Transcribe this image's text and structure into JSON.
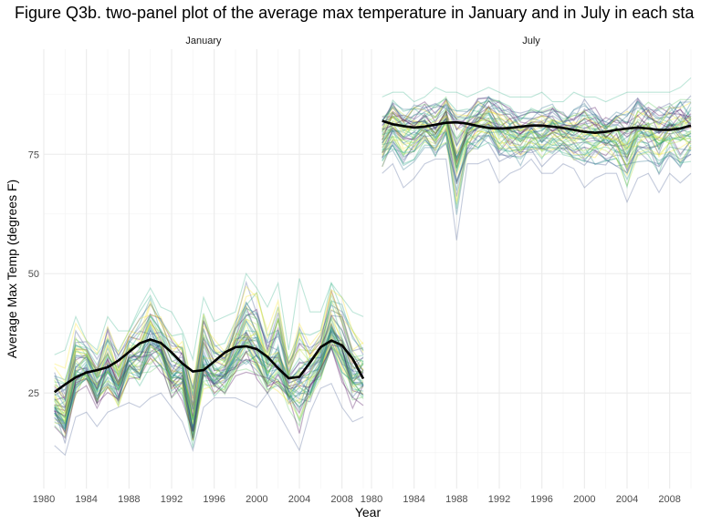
{
  "chart_data": {
    "type": "line",
    "title": "Figure Q3b. two-panel plot of the average max temperature in January and in July in each sta",
    "xlabel": "Year",
    "ylabel": "Average Max Temp (degrees F)",
    "xlim": [
      1980,
      2010
    ],
    "ylim": [
      5,
      97
    ],
    "x_ticks": [
      1980,
      1984,
      1988,
      1992,
      1996,
      2000,
      2004,
      2008
    ],
    "y_ticks": [
      25,
      50,
      75
    ],
    "grid": true,
    "legend": "none",
    "panels": [
      {
        "name": "January",
        "years": [
          1981,
          1982,
          1983,
          1984,
          1985,
          1986,
          1987,
          1988,
          1989,
          1990,
          1991,
          1992,
          1993,
          1994,
          1995,
          1996,
          1997,
          1998,
          1999,
          2000,
          2001,
          2002,
          2003,
          2004,
          2005,
          2006,
          2007,
          2008,
          2009,
          2010
        ],
        "mean_trend": [
          25.2,
          26.8,
          28.3,
          29.3,
          29.8,
          30.4,
          31.8,
          33.6,
          35.4,
          36.2,
          35.5,
          33.5,
          31.2,
          29.5,
          29.8,
          31.6,
          33.5,
          34.6,
          34.8,
          34.2,
          32.6,
          30.2,
          28.1,
          28.4,
          31.4,
          34.6,
          36.0,
          35.0,
          32.2,
          28.0
        ],
        "state_range_low": [
          14,
          12,
          20,
          21,
          18,
          21,
          22,
          23,
          22,
          24,
          25,
          22,
          19,
          13,
          22,
          24,
          24,
          24,
          23,
          22,
          25,
          21,
          17,
          13,
          21,
          26,
          27,
          22,
          19,
          20
        ],
        "state_range_high": [
          33,
          34,
          41,
          36,
          34,
          41,
          38,
          38,
          43,
          47,
          43,
          42,
          38,
          32,
          45,
          40,
          41,
          42,
          50,
          47,
          43,
          48,
          34,
          49,
          42,
          42,
          48,
          45,
          42,
          41
        ]
      },
      {
        "name": "July",
        "years": [
          1981,
          1982,
          1983,
          1984,
          1985,
          1986,
          1987,
          1988,
          1989,
          1990,
          1991,
          1992,
          1993,
          1994,
          1995,
          1996,
          1997,
          1998,
          1999,
          2000,
          2001,
          2002,
          2003,
          2004,
          2005,
          2006,
          2007,
          2008,
          2009,
          2010
        ],
        "mean_trend": [
          82.0,
          81.3,
          80.9,
          80.6,
          80.8,
          81.2,
          81.6,
          81.7,
          81.4,
          80.9,
          80.5,
          80.4,
          80.5,
          80.8,
          81.0,
          81.0,
          80.8,
          80.5,
          80.1,
          79.7,
          79.5,
          79.7,
          80.1,
          80.4,
          80.6,
          80.4,
          80.1,
          80.1,
          80.4,
          81.0
        ],
        "state_range_low": [
          71,
          73,
          68,
          70,
          73,
          74,
          74,
          57,
          73,
          73,
          74,
          69,
          71,
          72,
          74,
          71,
          71,
          73,
          72,
          68,
          70,
          71,
          71,
          65,
          70,
          71,
          67,
          71,
          69,
          71
        ],
        "state_range_high": [
          87,
          88,
          88,
          86,
          87,
          89,
          88,
          88,
          87,
          88,
          89,
          88,
          87,
          87,
          87,
          88,
          86,
          86,
          88,
          87,
          87,
          86,
          87,
          88,
          88,
          88,
          88,
          88,
          89,
          91
        ]
      }
    ]
  },
  "colors": {
    "trend": "#000000",
    "grid_major": "#ebebeb",
    "grid_minor": "#f5f5f5",
    "palette": [
      "#440154",
      "#3b528b",
      "#21918c",
      "#5ec962",
      "#fde725",
      "#2c728e",
      "#27ad81",
      "#addc30"
    ]
  }
}
